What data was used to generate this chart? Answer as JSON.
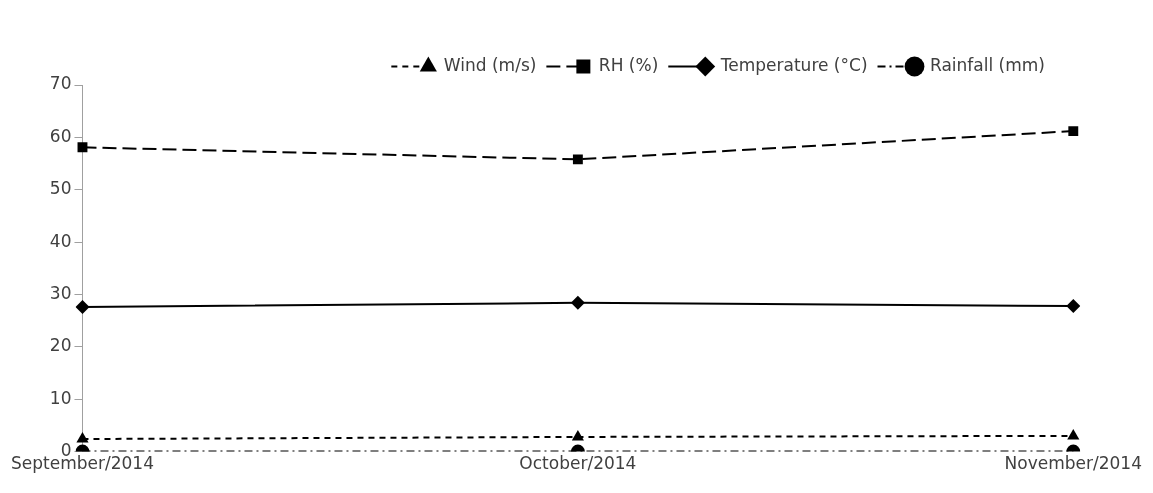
{
  "chart_data": {
    "type": "line",
    "categories": [
      "September/2014",
      "October/2014",
      "November/2014"
    ],
    "series": [
      {
        "name": "Wind (m/s)",
        "color": "#000000",
        "values": [
          2.4,
          2.8,
          3.0
        ],
        "marker": "triangle",
        "line_style": "dashed"
      },
      {
        "name": "RH (%)",
        "color": "#000000",
        "values": [
          58.1,
          55.8,
          61.2
        ],
        "marker": "square",
        "line_style": "dashed"
      },
      {
        "name": "Temperature (°C)",
        "color": "#000000",
        "values": [
          27.6,
          28.4,
          27.8
        ],
        "marker": "diamond",
        "line_style": "solid"
      },
      {
        "name": "Rainfall (mm)",
        "color": "#000000",
        "values": [
          0,
          0,
          0
        ],
        "marker": "circle",
        "line_style": "dotted"
      }
    ],
    "ylim": [
      0,
      70
    ],
    "yticks": [
      0,
      10,
      20,
      30,
      40,
      50,
      60,
      70
    ],
    "grid": false,
    "legend": "top right"
  }
}
